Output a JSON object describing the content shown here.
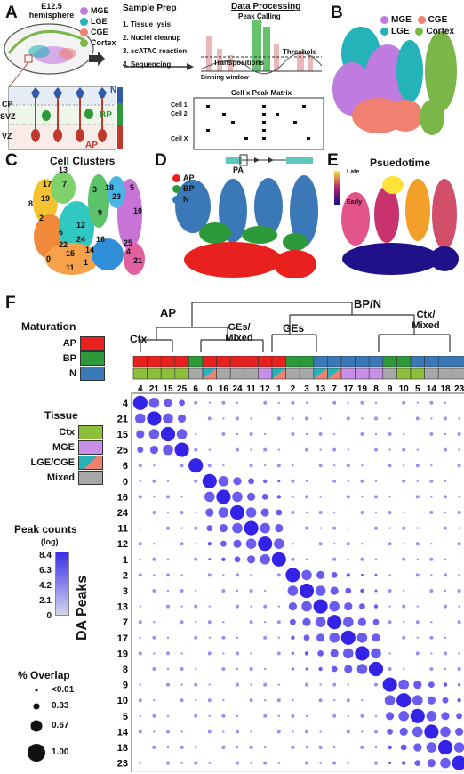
{
  "panels": {
    "A": {
      "label": "A",
      "hemisphere_label": "E12.5 hemisphere",
      "region_legend": [
        {
          "name": "MGE",
          "color": "#c07be0"
        },
        {
          "name": "LGE",
          "color": "#23b3b8"
        },
        {
          "name": "CGE",
          "color": "#f0806f"
        },
        {
          "name": "Cortex",
          "color": "#7ab648"
        }
      ],
      "layers": [
        "CP",
        "SVZ",
        "VZ"
      ],
      "cell_types": {
        "ap": "AP",
        "bp": "BP",
        "n": "N"
      },
      "side_labels": [
        "DCX/TUBB3",
        "EOMES",
        "SOX2/NES"
      ],
      "sample_prep_title": "Sample Prep",
      "sample_prep_steps": [
        "1. Tissue lysis",
        "2. Nuclei cleanup",
        "3. scATAC reaction",
        "4. Sequencing"
      ],
      "data_processing_title": "Data Processing",
      "peak_calling": "Peak Calling",
      "threshold": "Threshold",
      "transpositions": "Transpositions",
      "binning_window": "Binning window",
      "matrix_title": "Cell x Peak Matrix",
      "cell_rows": [
        "Cell 1",
        "Cell 2",
        "Cell X"
      ]
    },
    "B": {
      "label": "B",
      "legend": [
        {
          "name": "MGE",
          "color": "#c07be0"
        },
        {
          "name": "CGE",
          "color": "#f0806f"
        },
        {
          "name": "LGE",
          "color": "#23b3b8"
        },
        {
          "name": "Cortex",
          "color": "#7ab648"
        }
      ]
    },
    "C": {
      "label": "C",
      "title": "Cell Clusters",
      "cluster_labels": [
        "13",
        "17",
        "7",
        "18",
        "3",
        "23",
        "5",
        "8",
        "19",
        "2",
        "9",
        "10",
        "25",
        "6",
        "12",
        "16",
        "24",
        "14",
        "4",
        "0",
        "11",
        "1",
        "15",
        "22",
        "21"
      ]
    },
    "D": {
      "label": "D",
      "legend": [
        {
          "name": "AP",
          "color": "#e8201e"
        },
        {
          "name": "BP",
          "color": "#2c9a3a"
        },
        {
          "name": "N",
          "color": "#3a78b8"
        }
      ],
      "pa_label": "PA"
    },
    "E": {
      "label": "E",
      "title": "Psuedotime",
      "late": "Late",
      "early": "Early"
    },
    "F": {
      "label": "F",
      "group_labels": {
        "ap": "AP",
        "bpn": "BP/N",
        "ctx": "Ctx",
        "ges_mixed": "GEs/ Mixed",
        "ges": "GEs",
        "ctx_mixed": "Ctx/ Mixed"
      },
      "maturation_title": "Maturation",
      "maturation": [
        {
          "name": "AP",
          "color": "#e8201e"
        },
        {
          "name": "BP",
          "color": "#2c9a3a"
        },
        {
          "name": "N",
          "color": "#3a78b8"
        }
      ],
      "tissue_title": "Tissue",
      "tissue": [
        {
          "name": "Ctx",
          "color": "#8dbf3b"
        },
        {
          "name": "MGE",
          "color": "#c78fe6"
        },
        {
          "name": "LGE/CGE",
          "color": "split"
        },
        {
          "name": "Mixed",
          "color": "#a8a8a8"
        }
      ],
      "peak_title": "Peak counts",
      "peak_sub": "(log)",
      "peak_ticks": [
        "8.4",
        "6.3",
        "4.2",
        "2.1",
        "0"
      ],
      "overlap_title": "% Overlap",
      "overlap_ticks": [
        "<0.01",
        "0.33",
        "0.67",
        "1.00"
      ],
      "y_axis_label": "DA Peaks",
      "clusters": [
        "4",
        "21",
        "15",
        "25",
        "6",
        "0",
        "16",
        "24",
        "11",
        "12",
        "1",
        "2",
        "3",
        "13",
        "7",
        "17",
        "19",
        "8",
        "9",
        "10",
        "5",
        "14",
        "18",
        "23"
      ],
      "maturation_row": [
        "AP",
        "AP",
        "AP",
        "AP",
        "BP",
        "AP",
        "AP",
        "AP",
        "AP",
        "AP",
        "AP",
        "BP",
        "BP",
        "N",
        "N",
        "N",
        "N",
        "N",
        "BP",
        "BP",
        "N",
        "N",
        "N",
        "N"
      ],
      "tissue_row": [
        "Ctx",
        "Ctx",
        "Ctx",
        "Ctx",
        "Mixed",
        "LGE/CGE",
        "Mixed",
        "Mixed",
        "Mixed",
        "MGE",
        "LGE/CGE",
        "Mixed",
        "Mixed",
        "LGE/CGE",
        "LGE/CGE",
        "MGE",
        "MGE",
        "MGE",
        "Mixed",
        "Ctx",
        "Ctx",
        "Mixed",
        "Mixed",
        "Mixed"
      ]
    }
  },
  "chart_data": {
    "type": "heatmap",
    "title": "",
    "xlabel": "",
    "ylabel": "DA Peaks",
    "x": [
      "4",
      "21",
      "15",
      "25",
      "6",
      "0",
      "16",
      "24",
      "11",
      "12",
      "1",
      "2",
      "3",
      "13",
      "7",
      "17",
      "19",
      "8",
      "9",
      "10",
      "5",
      "14",
      "18",
      "23"
    ],
    "y": [
      "4",
      "21",
      "15",
      "25",
      "6",
      "0",
      "16",
      "24",
      "11",
      "12",
      "1",
      "2",
      "3",
      "13",
      "7",
      "17",
      "19",
      "8",
      "9",
      "10",
      "5",
      "14",
      "18",
      "23"
    ],
    "color_range": [
      0,
      8.4
    ],
    "size_range": [
      0,
      1.0
    ],
    "diagonal_size": 0.95,
    "notes": "Dot plot: diagonal dots large and dark; AP block (rows/cols 4-25) and GE block show moderate off-diagonal overlap"
  }
}
